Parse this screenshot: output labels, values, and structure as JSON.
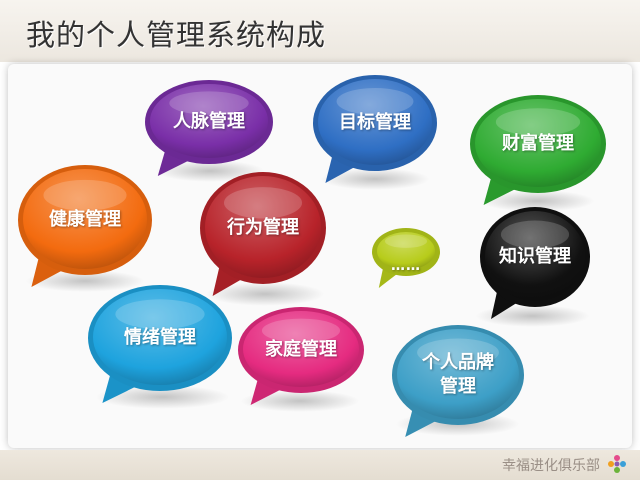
{
  "title": "我的个人管理系统构成",
  "brand": "幸福进化俱乐部",
  "bubbles": [
    {
      "label": "人脉管理",
      "color": "#7a2fa8"
    },
    {
      "label": "目标管理",
      "color": "#2f6fc4"
    },
    {
      "label": "财富管理",
      "color": "#2fab32"
    },
    {
      "label": "健康管理",
      "color": "#f36b0f"
    },
    {
      "label": "行为管理",
      "color": "#b8232a"
    },
    {
      "label": "……",
      "color": "#b7cc1a"
    },
    {
      "label": "知识管理",
      "color": "#111111"
    },
    {
      "label": "情绪管理",
      "color": "#1ea3de"
    },
    {
      "label": "家庭管理",
      "color": "#e52b80"
    },
    {
      "label": "个人品牌\n管理",
      "color": "#3d9fc7"
    }
  ]
}
